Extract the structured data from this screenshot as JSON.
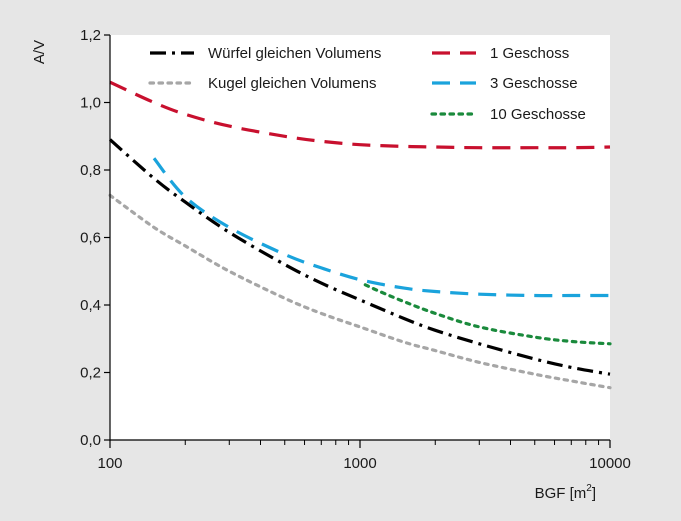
{
  "chart_data": {
    "type": "line",
    "title": "",
    "xlabel": "BGF [m",
    "xlabel_sup": "2",
    "xlabel_suffix": "]",
    "ylabel": "A/V",
    "x_scale": "log",
    "xlim": [
      100,
      10000
    ],
    "ylim": [
      0,
      1.2
    ],
    "x_ticks": [
      100,
      1000,
      10000
    ],
    "x_tick_labels": [
      "100",
      "1000",
      "10000"
    ],
    "y_ticks": [
      0,
      0.2,
      0.4,
      0.6,
      0.8,
      1.0,
      1.2
    ],
    "y_tick_labels": [
      "0,0",
      "0,2",
      "0,4",
      "0,6",
      "0,8",
      "1,0",
      "1,2"
    ],
    "grid": false,
    "legend_position": "top",
    "series": [
      {
        "name": "Würfel gleichen Volumens",
        "color": "#000000",
        "style": "dashdot",
        "x": [
          100,
          150,
          200,
          300,
          500,
          700,
          1000,
          1500,
          2000,
          3000,
          5000,
          7000,
          10000
        ],
        "y": [
          0.89,
          0.775,
          0.705,
          0.615,
          0.52,
          0.465,
          0.415,
          0.36,
          0.325,
          0.285,
          0.24,
          0.215,
          0.195
        ]
      },
      {
        "name": "Kugel gleichen Volumens",
        "color": "#a6a6a6",
        "style": "dotted",
        "x": [
          100,
          150,
          200,
          300,
          500,
          700,
          1000,
          1500,
          2000,
          3000,
          5000,
          7000,
          10000
        ],
        "y": [
          0.725,
          0.63,
          0.575,
          0.5,
          0.42,
          0.375,
          0.335,
          0.29,
          0.265,
          0.23,
          0.195,
          0.175,
          0.155
        ]
      },
      {
        "name": "1 Geschoss",
        "color": "#c8102e",
        "style": "dashed",
        "x": [
          100,
          150,
          200,
          300,
          500,
          700,
          1000,
          1500,
          2000,
          3000,
          5000,
          7000,
          10000
        ],
        "y": [
          1.06,
          1.0,
          0.965,
          0.93,
          0.9,
          0.885,
          0.875,
          0.87,
          0.868,
          0.866,
          0.866,
          0.866,
          0.868
        ]
      },
      {
        "name": "3 Geschosse",
        "color": "#1aa3dc",
        "style": "dashed",
        "x": [
          150,
          200,
          300,
          500,
          700,
          1000,
          1500,
          2000,
          3000,
          5000,
          7000,
          10000
        ],
        "y": [
          0.835,
          0.72,
          0.63,
          0.55,
          0.51,
          0.475,
          0.45,
          0.44,
          0.432,
          0.428,
          0.428,
          0.428
        ]
      },
      {
        "name": "10 Geschosse",
        "color": "#1a8a3c",
        "style": "dotted",
        "x": [
          1050,
          1200,
          1500,
          2000,
          3000,
          5000,
          7000,
          10000
        ],
        "y": [
          0.46,
          0.44,
          0.41,
          0.375,
          0.335,
          0.305,
          0.292,
          0.285
        ]
      }
    ]
  }
}
